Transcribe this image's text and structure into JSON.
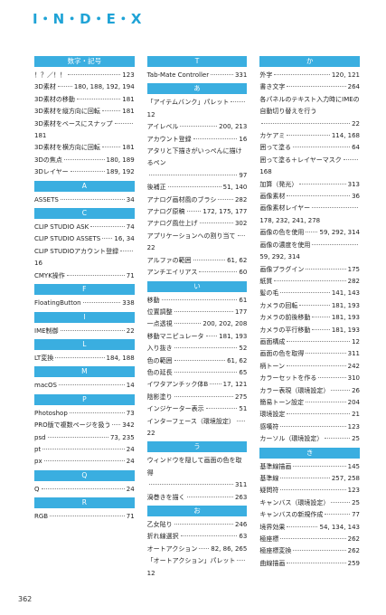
{
  "title": "I・N・D・E・X",
  "page_number": "362",
  "columns": [
    [
      {
        "heading": "数字・記号",
        "entries": [
          {
            "term": "！？／！！",
            "pages": "123"
          },
          {
            "term": "3D素材",
            "pages": "180, 188, 192, 194"
          },
          {
            "term": "3D素材の移動",
            "pages": "181"
          },
          {
            "term": "3D素材を縦方向に回転",
            "pages": "181"
          },
          {
            "term": "3D素材をベースにスナップ",
            "pages": "181"
          },
          {
            "term": "3D素材を横方向に回転",
            "pages": "181"
          },
          {
            "term": "3Dの焦点",
            "pages": "180, 189"
          },
          {
            "term": "3Dレイヤー",
            "pages": "189, 192"
          }
        ]
      },
      {
        "heading": "A",
        "entries": [
          {
            "term": "ASSETS",
            "pages": "34"
          }
        ]
      },
      {
        "heading": "C",
        "entries": [
          {
            "term": "CLIP STUDIO ASK",
            "pages": "74"
          },
          {
            "term": "CLIP STUDIO ASSETS",
            "pages": "16, 34"
          },
          {
            "term": "CLIP STUDIOアカウント登録",
            "pages": "16"
          },
          {
            "term": "CMYK操作",
            "pages": "71"
          }
        ]
      },
      {
        "heading": "F",
        "entries": [
          {
            "term": "FloatingButton",
            "pages": "338"
          }
        ]
      },
      {
        "heading": "I",
        "entries": [
          {
            "term": "IME制御",
            "pages": "22"
          }
        ]
      },
      {
        "heading": "L",
        "entries": [
          {
            "term": "LT変換",
            "pages": "184, 188"
          }
        ]
      },
      {
        "heading": "M",
        "entries": [
          {
            "term": "macOS",
            "pages": "14"
          }
        ]
      },
      {
        "heading": "P",
        "entries": [
          {
            "term": "Photoshop",
            "pages": "73"
          },
          {
            "term": "PRO版で複数ページを扱う",
            "pages": "342"
          },
          {
            "term": "psd",
            "pages": "73, 235"
          },
          {
            "term": "pt",
            "pages": "24"
          },
          {
            "term": "px",
            "pages": "24"
          }
        ]
      },
      {
        "heading": "Q",
        "entries": [
          {
            "term": "Q",
            "pages": "24"
          }
        ]
      },
      {
        "heading": "R",
        "entries": [
          {
            "term": "RGB",
            "pages": "71"
          }
        ]
      }
    ],
    [
      {
        "heading": "T",
        "entries": [
          {
            "term": "Tab-Mate Controller",
            "pages": "331"
          }
        ]
      },
      {
        "heading": "あ",
        "entries": [
          {
            "term": "「アイテムバンク」パレット",
            "pages": "12"
          },
          {
            "term": "アイレベル",
            "pages": "200, 213"
          },
          {
            "term": "アカウント登録",
            "pages": "16"
          },
          {
            "term": "アタリと下描きがいっぺんに描けるペン",
            "pages": "97"
          },
          {
            "term": "後補正",
            "pages": "51, 140"
          },
          {
            "term": "アナログ画材風のブラシ",
            "pages": "282"
          },
          {
            "term": "アナログ原稿",
            "pages": "172, 175, 177"
          },
          {
            "term": "アナログ風仕上げ",
            "pages": "302"
          },
          {
            "term": "アプリケーションへの割り当て",
            "pages": "22"
          },
          {
            "term": "アルファの範囲",
            "pages": "61, 62"
          },
          {
            "term": "アンチエイリアス",
            "pages": "60"
          }
        ]
      },
      {
        "heading": "い",
        "entries": [
          {
            "term": "移動",
            "pages": "61"
          },
          {
            "term": "位置調整",
            "pages": "177"
          },
          {
            "term": "一点透視",
            "pages": "200, 202, 208"
          },
          {
            "term": "移動マニピュレータ",
            "pages": "181, 193"
          },
          {
            "term": "入り抜き",
            "pages": "52"
          },
          {
            "term": "色の範囲",
            "pages": "61, 62"
          },
          {
            "term": "色の延長",
            "pages": "65"
          },
          {
            "term": "イワタアンチック体B",
            "pages": "17, 121"
          },
          {
            "term": "陰影塗り",
            "pages": "275"
          },
          {
            "term": "インジケーター表示",
            "pages": "51"
          },
          {
            "term": "インターフェース（環境設定）",
            "pages": "22"
          }
        ]
      },
      {
        "heading": "う",
        "entries": [
          {
            "term": "ウィンドウを隠して画面の色を取得",
            "pages": "311"
          },
          {
            "term": "渦巻きを描く",
            "pages": "263"
          }
        ]
      },
      {
        "heading": "お",
        "entries": [
          {
            "term": "乙女貼り",
            "pages": "246"
          },
          {
            "term": "折れ線選択",
            "pages": "63"
          },
          {
            "term": "オートアクション",
            "pages": "82, 86, 265"
          },
          {
            "term": "「オートアクション」パレット",
            "pages": "12"
          }
        ]
      }
    ],
    [
      {
        "heading": "か",
        "entries": [
          {
            "term": "外字",
            "pages": "120, 121"
          },
          {
            "term": "書き文字",
            "pages": "264"
          },
          {
            "term": "各パネルのテキスト入力時にIMEの自動切り替えを行う",
            "pages": "22"
          },
          {
            "term": "カケアミ",
            "pages": "114, 168"
          },
          {
            "term": "囲って塗る",
            "pages": "64"
          },
          {
            "term": "囲って塗る＋レイヤーマスク",
            "pages": "168"
          },
          {
            "term": "加算（発光）",
            "pages": "313"
          },
          {
            "term": "画像素材",
            "pages": "36"
          },
          {
            "term": "画像素材レイヤー",
            "pages": "178, 232, 241, 278"
          },
          {
            "term": "画像の色を使用",
            "pages": "59, 292, 314"
          },
          {
            "term": "画像の濃度を使用",
            "pages": "59, 292, 314"
          },
          {
            "term": "画像プラグイン",
            "pages": "175"
          },
          {
            "term": "紙質",
            "pages": "282"
          },
          {
            "term": "髪の毛",
            "pages": "141, 143"
          },
          {
            "term": "カメラの回転",
            "pages": "181, 193"
          },
          {
            "term": "カメラの前後移動",
            "pages": "181, 193"
          },
          {
            "term": "カメラの平行移動",
            "pages": "181, 193"
          },
          {
            "term": "画面構成",
            "pages": "12"
          },
          {
            "term": "画面の色を取得",
            "pages": "311"
          },
          {
            "term": "柄トーン",
            "pages": "242"
          },
          {
            "term": "カラーセットを作る",
            "pages": "310"
          },
          {
            "term": "カラー表現（環境設定）",
            "pages": "26"
          },
          {
            "term": "簡易トーン設定",
            "pages": "204"
          },
          {
            "term": "環境設定",
            "pages": "21"
          },
          {
            "term": "感嘆符",
            "pages": "123"
          },
          {
            "term": "カーソル（環境設定）",
            "pages": "25"
          }
        ]
      },
      {
        "heading": "き",
        "entries": [
          {
            "term": "基準線描画",
            "pages": "145"
          },
          {
            "term": "基準線",
            "pages": "257, 258"
          },
          {
            "term": "疑問符",
            "pages": "123"
          },
          {
            "term": "キャンバス（環境設定）",
            "pages": "25"
          },
          {
            "term": "キャンバスの新規作成",
            "pages": "77"
          },
          {
            "term": "境界効果",
            "pages": "54, 134, 143"
          },
          {
            "term": "極座標",
            "pages": "262"
          },
          {
            "term": "極座標変換",
            "pages": "262"
          },
          {
            "term": "曲線描画",
            "pages": "259"
          }
        ]
      }
    ]
  ]
}
